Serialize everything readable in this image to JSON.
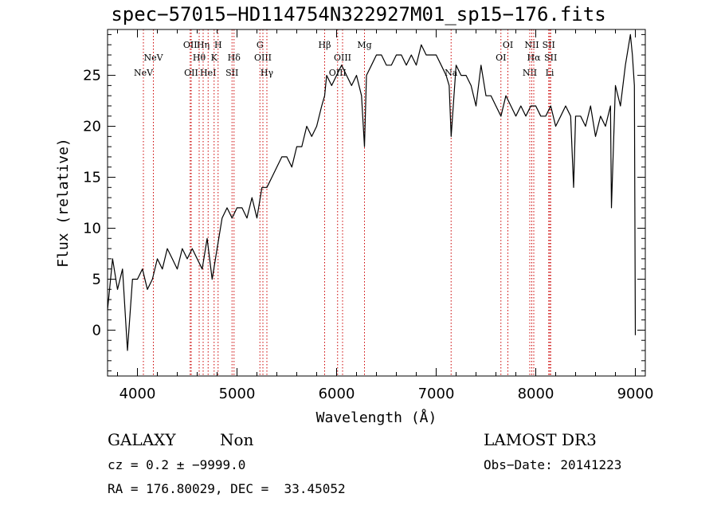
{
  "title": "spec−57015−HD114754N322927M01_sp15−176.fits",
  "info": {
    "class": "GALAXY",
    "subclass": "Non",
    "survey": "LAMOST DR3",
    "cz": "cz = 0.2 ± −9999.0",
    "obs_date": "Obs−Date: 20141223",
    "coords": "RA = 176.80029, DEC =  33.45052"
  },
  "chart_data": {
    "type": "line",
    "xlabel": "Wavelength (Å)",
    "ylabel": "Flux (relative)",
    "xlim": [
      3700,
      9100
    ],
    "ylim": [
      -4.5,
      29.5
    ],
    "xticks": [
      4000,
      5000,
      6000,
      7000,
      8000,
      9000
    ],
    "yticks": [
      0,
      5,
      10,
      15,
      20,
      25
    ],
    "series": [
      {
        "name": "flux",
        "x": [
          3700,
          3750,
          3800,
          3850,
          3900,
          3950,
          4000,
          4050,
          4100,
          4150,
          4200,
          4250,
          4300,
          4350,
          4400,
          4450,
          4500,
          4550,
          4600,
          4650,
          4700,
          4750,
          4800,
          4850,
          4900,
          4950,
          5000,
          5050,
          5100,
          5150,
          5200,
          5250,
          5300,
          5350,
          5400,
          5450,
          5500,
          5550,
          5600,
          5650,
          5700,
          5750,
          5800,
          5850,
          5880,
          5900,
          5950,
          6000,
          6050,
          6100,
          6150,
          6200,
          6250,
          6280,
          6300,
          6350,
          6400,
          6450,
          6500,
          6550,
          6600,
          6650,
          6700,
          6750,
          6800,
          6850,
          6900,
          6950,
          7000,
          7050,
          7100,
          7130,
          7150,
          7200,
          7250,
          7300,
          7350,
          7400,
          7450,
          7500,
          7550,
          7600,
          7650,
          7700,
          7750,
          7800,
          7850,
          7900,
          7950,
          8000,
          8050,
          8100,
          8150,
          8200,
          8250,
          8300,
          8350,
          8380,
          8400,
          8450,
          8500,
          8550,
          8600,
          8650,
          8700,
          8750,
          8760,
          8800,
          8850,
          8900,
          8950,
          8970,
          8990,
          9000
        ],
        "y": [
          2,
          7,
          4,
          6,
          -2,
          5,
          5,
          6,
          4,
          5,
          7,
          6,
          8,
          7,
          6,
          8,
          7,
          8,
          7,
          6,
          9,
          5,
          8,
          11,
          12,
          11,
          12,
          12,
          11,
          13,
          11,
          14,
          14,
          15,
          16,
          17,
          17,
          16,
          18,
          18,
          20,
          19,
          20,
          22,
          23,
          25,
          24,
          25,
          26,
          25,
          24,
          25,
          23,
          18,
          25,
          26,
          27,
          27,
          26,
          26,
          27,
          27,
          26,
          27,
          26,
          28,
          27,
          27,
          27,
          26,
          25,
          24,
          19,
          26,
          25,
          25,
          24,
          22,
          26,
          23,
          23,
          22,
          21,
          23,
          22,
          21,
          22,
          21,
          22,
          22,
          21,
          21,
          22,
          20,
          21,
          22,
          21,
          14,
          21,
          21,
          20,
          22,
          19,
          21,
          20,
          22,
          12,
          24,
          22,
          26,
          29,
          27,
          24,
          -0.5
        ]
      }
    ],
    "lines": [
      {
        "name": "NeV",
        "wavelength": 4060,
        "label_row": 3
      },
      {
        "name": "NeV",
        "wavelength": 4160,
        "label_row": 2
      },
      {
        "name": "OII",
        "wavelength": 4530,
        "label_row": 1
      },
      {
        "name": "OII",
        "wavelength": 4540,
        "label_row": 3
      },
      {
        "name": "Hθ",
        "wavelength": 4620,
        "label_row": 2
      },
      {
        "name": "Hη",
        "wavelength": 4660,
        "label_row": 1
      },
      {
        "name": "HeI",
        "wavelength": 4710,
        "label_row": 3
      },
      {
        "name": "K",
        "wavelength": 4770,
        "label_row": 2
      },
      {
        "name": "H",
        "wavelength": 4810,
        "label_row": 1
      },
      {
        "name": "Hδ",
        "wavelength": 4970,
        "label_row": 2
      },
      {
        "name": "SII",
        "wavelength": 4950,
        "label_row": 3
      },
      {
        "name": "G",
        "wavelength": 5230,
        "label_row": 1
      },
      {
        "name": "OIII",
        "wavelength": 5260,
        "label_row": 2
      },
      {
        "name": "Hγ",
        "wavelength": 5300,
        "label_row": 3
      },
      {
        "name": "Hβ",
        "wavelength": 5880,
        "label_row": 1
      },
      {
        "name": "OIII",
        "wavelength": 6010,
        "label_row": 3
      },
      {
        "name": "OIII",
        "wavelength": 6060,
        "label_row": 2
      },
      {
        "name": "Mg",
        "wavelength": 6280,
        "label_row": 1
      },
      {
        "name": "Na",
        "wavelength": 7150,
        "label_row": 3
      },
      {
        "name": "OI",
        "wavelength": 7650,
        "label_row": 2
      },
      {
        "name": "OI",
        "wavelength": 7720,
        "label_row": 1
      },
      {
        "name": "NII",
        "wavelength": 7940,
        "label_row": 3
      },
      {
        "name": "NII",
        "wavelength": 7960,
        "label_row": 1
      },
      {
        "name": "Hα",
        "wavelength": 7980,
        "label_row": 2
      },
      {
        "name": "SII",
        "wavelength": 8130,
        "label_row": 1
      },
      {
        "name": "SII",
        "wavelength": 8150,
        "label_row": 2
      },
      {
        "name": "Li",
        "wavelength": 8140,
        "label_row": 3
      }
    ]
  },
  "colors": {
    "axis": "#000000",
    "spectrum": "#000000",
    "line_markers": "#cc0000"
  }
}
